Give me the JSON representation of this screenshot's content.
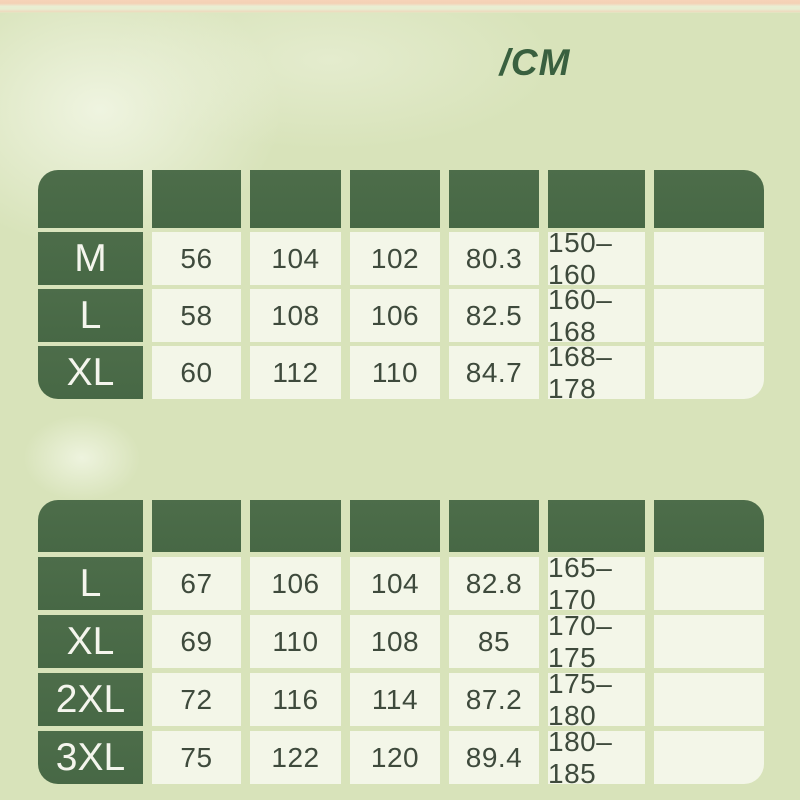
{
  "unit_label": "/CM",
  "colors": {
    "background": "#d8e3ba",
    "header_green": "#4a6a47",
    "cell_cream": "#f3f6e8",
    "number_text": "#3e4a3c",
    "size_label_text": "#f4f5ed",
    "title_text": "#39603f",
    "top_edge_peach": "#f5d2b7"
  },
  "chart_data": [
    {
      "type": "table",
      "id": "upper-size-table",
      "title": "",
      "header_cells": [
        "",
        "",
        "",
        "",
        "",
        "",
        ""
      ],
      "rows": [
        {
          "size": "M",
          "values": [
            "56",
            "104",
            "102",
            "80.3",
            "150–160",
            ""
          ]
        },
        {
          "size": "L",
          "values": [
            "58",
            "108",
            "106",
            "82.5",
            "160–168",
            ""
          ]
        },
        {
          "size": "XL",
          "values": [
            "60",
            "112",
            "110",
            "84.7",
            "168–178",
            ""
          ]
        }
      ]
    },
    {
      "type": "table",
      "id": "lower-size-table",
      "title": "",
      "header_cells": [
        "",
        "",
        "",
        "",
        "",
        "",
        ""
      ],
      "rows": [
        {
          "size": "L",
          "values": [
            "67",
            "106",
            "104",
            "82.8",
            "165–170",
            ""
          ]
        },
        {
          "size": "XL",
          "values": [
            "69",
            "110",
            "108",
            "85",
            "170–175",
            ""
          ]
        },
        {
          "size": "2XL",
          "values": [
            "72",
            "116",
            "114",
            "87.2",
            "175–180",
            ""
          ]
        },
        {
          "size": "3XL",
          "values": [
            "75",
            "122",
            "120",
            "89.4",
            "180–185",
            ""
          ]
        }
      ]
    }
  ]
}
